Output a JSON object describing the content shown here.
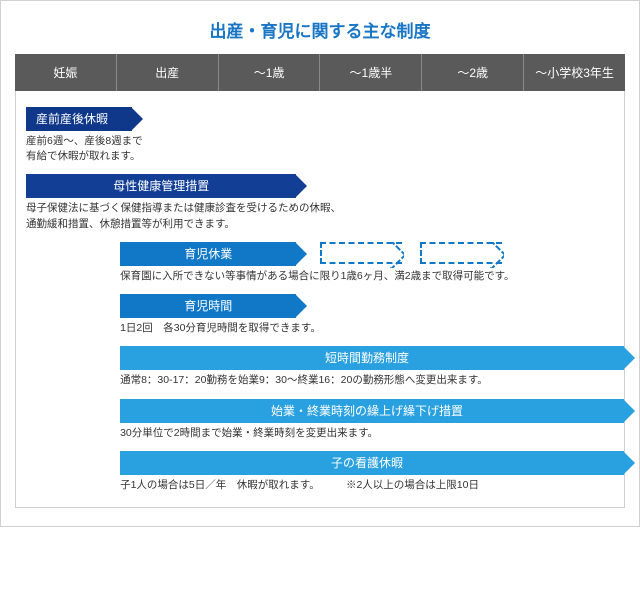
{
  "title": "出産・育児に関する主な制度",
  "title_color": "#1976c5",
  "title_fontsize": 17,
  "header_bg": "#5a5a5a",
  "columns": [
    "妊娠",
    "出産",
    "〜1歳",
    "〜1歳半",
    "〜2歳",
    "〜小学校3年生"
  ],
  "col_width_pct": 16.666,
  "colors": {
    "dark_navy": "#10388a",
    "navy": "#123e96",
    "blue": "#1178c8",
    "sky": "#29a0e0"
  },
  "items": [
    {
      "label": "産前産後休暇",
      "desc": "産前6週〜、産後8週まで\n有給で休暇が取れます。",
      "bar_color_key": "dark_navy",
      "left_pct": 0,
      "width_pct": 18,
      "label_align": "left"
    },
    {
      "label": "母性健康管理措置",
      "desc": "母子保健法に基づく保健指導または健康診査を受けるための休暇、\n通勤緩和措置、休憩措置等が利用できます。",
      "bar_color_key": "navy",
      "left_pct": 0,
      "width_pct": 46,
      "label_align": "center"
    },
    {
      "label": "育児休業",
      "desc": "保育園に入所できない等事情がある場合に限り1歳6ヶ月、満2歳まで取得可能です。",
      "bar_color_key": "blue",
      "left_pct": 16,
      "width_pct": 30,
      "label_align": "center",
      "desc_left_pct": 16,
      "dashed_ext": [
        {
          "left_pct": 50,
          "width_pct": 14
        },
        {
          "left_pct": 67,
          "width_pct": 14
        }
      ]
    },
    {
      "label": "育児時間",
      "desc": "1日2回　各30分育児時間を取得できます。",
      "bar_color_key": "blue",
      "left_pct": 16,
      "width_pct": 30,
      "label_align": "center",
      "desc_left_pct": 16
    },
    {
      "label": "短時間勤務制度",
      "desc": "通常8：30-17：20勤務を始業9：30〜終業16：20の勤務形態へ変更出来ます。",
      "bar_color_key": "sky",
      "left_pct": 16,
      "width_pct": 84,
      "label_align": "center",
      "desc_left_pct": 16,
      "overflow": true
    },
    {
      "label": "始業・終業時刻の繰上げ繰下げ措置",
      "desc": "30分単位で2時間まで始業・終業時刻を変更出来ます。",
      "bar_color_key": "sky",
      "left_pct": 16,
      "width_pct": 84,
      "label_align": "center",
      "desc_left_pct": 16,
      "overflow": true
    },
    {
      "label": "子の看護休暇",
      "desc": "子1人の場合は5日／年　休暇が取れます。　　　※2人以上の場合は上限10日",
      "bar_color_key": "sky",
      "left_pct": 16,
      "width_pct": 84,
      "label_align": "center",
      "desc_left_pct": 16,
      "overflow": true
    }
  ]
}
